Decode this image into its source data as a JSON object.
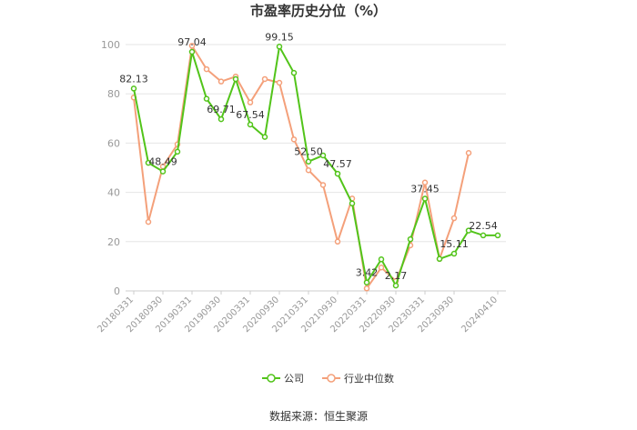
{
  "chart_data": {
    "type": "line",
    "title": "市盈率历史分位（%）",
    "xlabel": "",
    "ylabel": "",
    "ylim": [
      0,
      100
    ],
    "yticks": [
      0,
      20,
      40,
      60,
      80,
      100
    ],
    "x": [
      "20180331",
      "20180630",
      "20180930",
      "20181231",
      "20190331",
      "20190630",
      "20190930",
      "20191231",
      "20200331",
      "20200630",
      "20200930",
      "20201231",
      "20210331",
      "20210630",
      "20210930",
      "20211231",
      "20220331",
      "20220630",
      "20220930",
      "20221231",
      "20230331",
      "20230630",
      "20230930",
      "20231231",
      "20240331",
      "20240410"
    ],
    "xtick_labels": [
      "20180331",
      "20180930",
      "20190331",
      "20190930",
      "20200331",
      "20200930",
      "20210331",
      "20210930",
      "20220331",
      "20220930",
      "20230331",
      "20230930",
      "20240410"
    ],
    "series": [
      {
        "name": "公司",
        "color": "#52c41a",
        "values": [
          82.13,
          52,
          48.49,
          56.5,
          97.04,
          78,
          69.71,
          86,
          67.54,
          62.5,
          99.15,
          88.5,
          52.5,
          55,
          47.57,
          35.5,
          3.42,
          12.8,
          2.17,
          21,
          37.45,
          13,
          15.11,
          24.5,
          22.54,
          22.54
        ]
      },
      {
        "name": "行业中位数",
        "color": "#f4a07a",
        "values": [
          78.5,
          28,
          50.5,
          59.5,
          99.5,
          90,
          85,
          87,
          76.5,
          86,
          84.5,
          61.5,
          49,
          43,
          20,
          37.5,
          1,
          9.5,
          4,
          18.5,
          44,
          13,
          29.5,
          56,
          null,
          null
        ]
      }
    ],
    "data_labels": [
      {
        "series": 0,
        "index": 0,
        "text": "82.13"
      },
      {
        "series": 0,
        "index": 2,
        "text": "48.49"
      },
      {
        "series": 0,
        "index": 4,
        "text": "97.04"
      },
      {
        "series": 0,
        "index": 6,
        "text": "69.71"
      },
      {
        "series": 0,
        "index": 8,
        "text": "67.54"
      },
      {
        "series": 0,
        "index": 10,
        "text": "99.15"
      },
      {
        "series": 0,
        "index": 12,
        "text": "52.50"
      },
      {
        "series": 0,
        "index": 14,
        "text": "47.57"
      },
      {
        "series": 0,
        "index": 16,
        "text": "3.42"
      },
      {
        "series": 0,
        "index": 18,
        "text": "2.17"
      },
      {
        "series": 0,
        "index": 20,
        "text": "37.45"
      },
      {
        "series": 0,
        "index": 22,
        "text": "15.11"
      },
      {
        "series": 0,
        "index": 24,
        "text": "22.54"
      }
    ],
    "grid": true,
    "legend_position": "bottom-center"
  },
  "source_text": "数据来源：恒生聚源"
}
